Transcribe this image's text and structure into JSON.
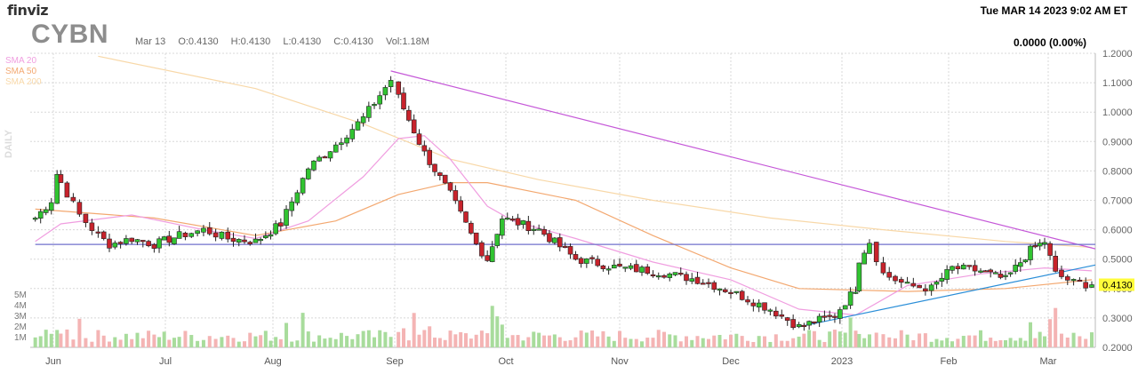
{
  "header": {
    "logo": "finviz",
    "datetime": "Tue MAR 14 2023 9:02 AM ET",
    "ticker": "CYBN",
    "date": "Mar 13",
    "open": "O:0.4130",
    "high": "H:0.4130",
    "low": "L:0.4130",
    "close": "C:0.4130",
    "volume": "Vol:1.18M",
    "change": "0.0000 (0.00%)"
  },
  "legend": {
    "sma20": "SMA 20",
    "sma50": "SMA 50",
    "sma200": "SMA 200",
    "period": "DAILY"
  },
  "colors": {
    "up": "#31c431",
    "down": "#c8232c",
    "sma20": "#f09ee0",
    "sma50": "#f3a870",
    "sma200": "#f8d8a8",
    "vol_up": "#a8dc9c",
    "vol_down": "#f4b4b4",
    "trendline_down": "#c558d8",
    "trendline_up": "#2a8ed8",
    "resistance": "#7070cc",
    "last_price_bg": "#fffc3a"
  },
  "chart_data": {
    "type": "candlestick",
    "y_ticks": [
      "1.2000",
      "1.1000",
      "1.0000",
      "0.9000",
      "0.8000",
      "0.7000",
      "0.6000",
      "0.5000",
      "0.4000",
      "0.3000",
      "0.2000"
    ],
    "ylim": [
      0.2,
      1.2
    ],
    "volume_ticks": [
      "5M",
      "4M",
      "3M",
      "2M",
      "1M"
    ],
    "x_labels": [
      "Jun",
      "Jul",
      "Aug",
      "Sep",
      "Oct",
      "Nov",
      "Dec",
      "2023",
      "Feb",
      "Mar"
    ],
    "last_price": "0.4130",
    "close_series": [
      {
        "date": "May 23",
        "close": 0.64
      },
      {
        "date": "May 31",
        "close": 0.7
      },
      {
        "date": "Jun 2",
        "close": 0.79
      },
      {
        "date": "Jun 3",
        "close": 0.76
      },
      {
        "date": "Jun 8",
        "close": 0.65
      },
      {
        "date": "Jun 13",
        "close": 0.58
      },
      {
        "date": "Jun 16",
        "close": 0.55
      },
      {
        "date": "Jun 22",
        "close": 0.57
      },
      {
        "date": "Jun 28",
        "close": 0.55
      },
      {
        "date": "Jul 5",
        "close": 0.58
      },
      {
        "date": "Jul 12",
        "close": 0.6
      },
      {
        "date": "Jul 19",
        "close": 0.57
      },
      {
        "date": "Jul 27",
        "close": 0.56
      },
      {
        "date": "Aug 3",
        "close": 0.62
      },
      {
        "date": "Aug 10",
        "close": 0.81
      },
      {
        "date": "Aug 17",
        "close": 0.89
      },
      {
        "date": "Aug 24",
        "close": 0.98
      },
      {
        "date": "Aug 31",
        "close": 1.11
      },
      {
        "date": "Sep 2",
        "close": 1.05
      },
      {
        "date": "Sep 9",
        "close": 0.86
      },
      {
        "date": "Sep 16",
        "close": 0.72
      },
      {
        "date": "Sep 23",
        "close": 0.55
      },
      {
        "date": "Sep 26",
        "close": 0.5
      },
      {
        "date": "Sep 30",
        "close": 0.64
      },
      {
        "date": "Oct 10",
        "close": 0.6
      },
      {
        "date": "Oct 20",
        "close": 0.5
      },
      {
        "date": "Nov 1",
        "close": 0.47
      },
      {
        "date": "Nov 10",
        "close": 0.46
      },
      {
        "date": "Nov 22",
        "close": 0.43
      },
      {
        "date": "Dec 1",
        "close": 0.39
      },
      {
        "date": "Dec 12",
        "close": 0.33
      },
      {
        "date": "Dec 20",
        "close": 0.27
      },
      {
        "date": "Dec 30",
        "close": 0.31
      },
      {
        "date": "Jan 5",
        "close": 0.4
      },
      {
        "date": "Jan 6",
        "close": 0.5
      },
      {
        "date": "Jan 9",
        "close": 0.56
      },
      {
        "date": "Jan 13",
        "close": 0.45
      },
      {
        "date": "Jan 20",
        "close": 0.41
      },
      {
        "date": "Jan 27",
        "close": 0.4
      },
      {
        "date": "Feb 2",
        "close": 0.47
      },
      {
        "date": "Feb 10",
        "close": 0.46
      },
      {
        "date": "Feb 17",
        "close": 0.43
      },
      {
        "date": "Feb 24",
        "close": 0.53
      },
      {
        "date": "Feb 28",
        "close": 0.56
      },
      {
        "date": "Mar 3",
        "close": 0.45
      },
      {
        "date": "Mar 8",
        "close": 0.42
      },
      {
        "date": "Mar 13",
        "close": 0.413
      }
    ],
    "sma20": [
      {
        "date": "May 23",
        "value": 0.56
      },
      {
        "date": "Jun 3",
        "value": 0.62
      },
      {
        "date": "Jun 22",
        "value": 0.65
      },
      {
        "date": "Jul 12",
        "value": 0.6
      },
      {
        "date": "Jul 27",
        "value": 0.57
      },
      {
        "date": "Aug 10",
        "value": 0.63
      },
      {
        "date": "Aug 24",
        "value": 0.78
      },
      {
        "date": "Sep 2",
        "value": 0.91
      },
      {
        "date": "Sep 9",
        "value": 0.92
      },
      {
        "date": "Sep 16",
        "value": 0.84
      },
      {
        "date": "Sep 26",
        "value": 0.68
      },
      {
        "date": "Oct 3",
        "value": 0.63
      },
      {
        "date": "Oct 20",
        "value": 0.57
      },
      {
        "date": "Nov 10",
        "value": 0.49
      },
      {
        "date": "Dec 1",
        "value": 0.43
      },
      {
        "date": "Dec 20",
        "value": 0.33
      },
      {
        "date": "Jan 5",
        "value": 0.31
      },
      {
        "date": "Jan 20",
        "value": 0.41
      },
      {
        "date": "Feb 10",
        "value": 0.45
      },
      {
        "date": "Feb 28",
        "value": 0.47
      },
      {
        "date": "Mar 13",
        "value": 0.46
      }
    ],
    "sma50": [
      {
        "date": "May 23",
        "value": 0.67
      },
      {
        "date": "Jun 28",
        "value": 0.64
      },
      {
        "date": "Jul 27",
        "value": 0.58
      },
      {
        "date": "Aug 17",
        "value": 0.63
      },
      {
        "date": "Sep 2",
        "value": 0.72
      },
      {
        "date": "Sep 16",
        "value": 0.76
      },
      {
        "date": "Sep 26",
        "value": 0.76
      },
      {
        "date": "Oct 20",
        "value": 0.7
      },
      {
        "date": "Nov 10",
        "value": 0.58
      },
      {
        "date": "Dec 1",
        "value": 0.47
      },
      {
        "date": "Dec 20",
        "value": 0.4
      },
      {
        "date": "Jan 20",
        "value": 0.39
      },
      {
        "date": "Feb 17",
        "value": 0.4
      },
      {
        "date": "Mar 13",
        "value": 0.43
      }
    ],
    "sma200": [
      {
        "date": "Jun 13",
        "value": 1.19
      },
      {
        "date": "Jul 27",
        "value": 1.08
      },
      {
        "date": "Aug 24",
        "value": 0.96
      },
      {
        "date": "Sep 16",
        "value": 0.84
      },
      {
        "date": "Oct 10",
        "value": 0.77
      },
      {
        "date": "Nov 10",
        "value": 0.7
      },
      {
        "date": "Dec 12",
        "value": 0.64
      },
      {
        "date": "Jan 13",
        "value": 0.6
      },
      {
        "date": "Feb 17",
        "value": 0.56
      },
      {
        "date": "Mar 13",
        "value": 0.54
      }
    ],
    "trendlines": [
      {
        "name": "downtrend",
        "from": {
          "date": "Aug 31",
          "value": 1.14
        },
        "to": {
          "date": "Mar 13",
          "value": 0.535
        }
      },
      {
        "name": "uptrend",
        "from": {
          "date": "Dec 20",
          "value": 0.27
        },
        "to": {
          "date": "Mar 13",
          "value": 0.48
        }
      },
      {
        "name": "resistance",
        "from": {
          "date": "May 23",
          "value": 0.55
        },
        "to": {
          "date": "Mar 13",
          "value": 0.55
        }
      }
    ]
  }
}
